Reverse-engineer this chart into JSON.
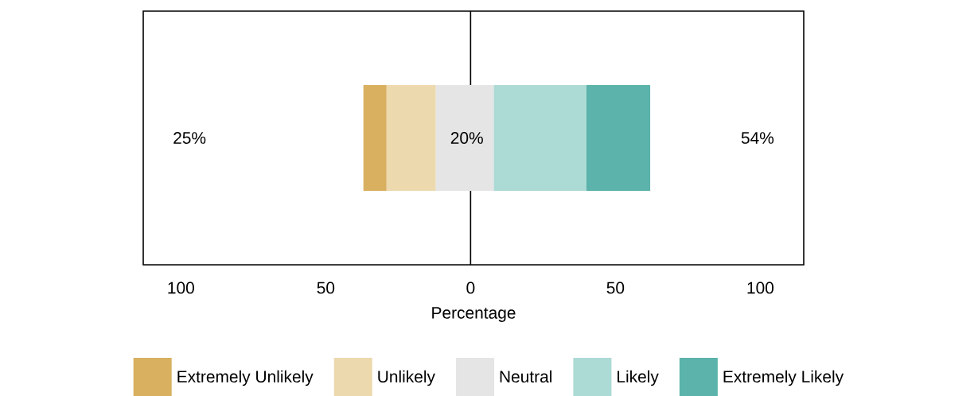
{
  "chart_data": {
    "type": "bar",
    "orientation": "horizontal",
    "xlabel": "Percentage",
    "categories": [
      null
    ],
    "series": [
      {
        "name": "Extremely Unlikely",
        "color": "#d9b060",
        "values": [
          8
        ],
        "base": [
          -37
        ]
      },
      {
        "name": "Unlikely",
        "color": "#ecd9ae",
        "values": [
          17
        ],
        "base": [
          -29
        ]
      },
      {
        "name": "Neutral",
        "color": "#e5e5e5",
        "values": [
          20
        ],
        "base": [
          -12
        ]
      },
      {
        "name": "Likely",
        "color": "#acdad5",
        "values": [
          32
        ],
        "base": [
          8
        ]
      },
      {
        "name": "Extremely Likely",
        "color": "#5bb3ab",
        "values": [
          22
        ],
        "base": [
          40
        ]
      }
    ],
    "xlim": [
      -113,
      115
    ],
    "xticks": [
      {
        "value": -100,
        "label": "100"
      },
      {
        "value": -50,
        "label": "50"
      },
      0,
      50,
      100
    ],
    "ref_lines": [
      {
        "axis": "x",
        "value": 0,
        "color": "#000000"
      }
    ],
    "annotations": [
      "25%",
      "20%",
      "54%"
    ],
    "legend": "bottom",
    "tick_labels": "x",
    "grid": false
  }
}
